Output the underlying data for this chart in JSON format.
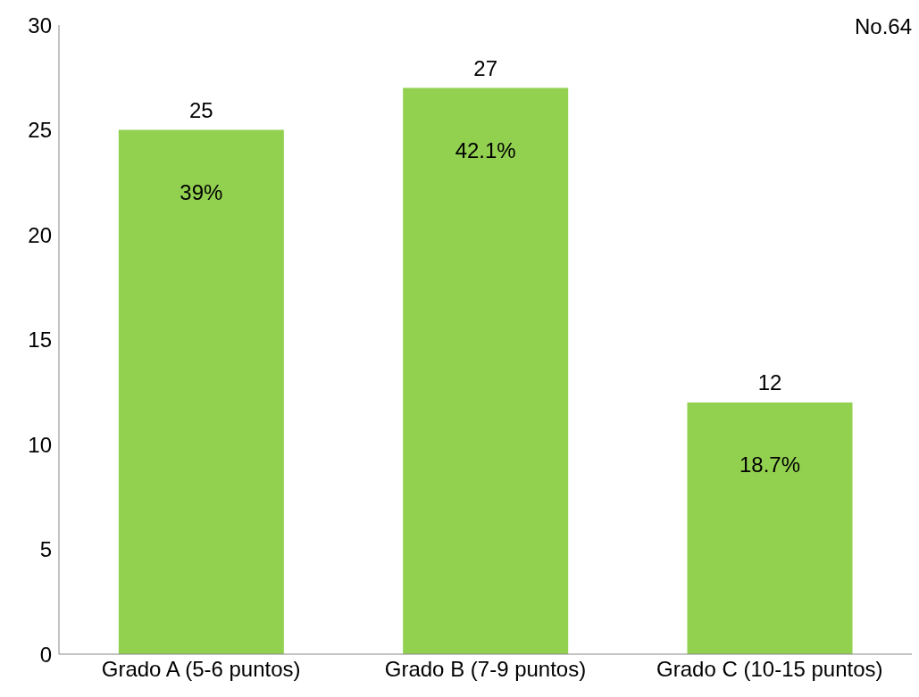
{
  "chart_data": {
    "type": "bar",
    "categories": [
      "Grado A (5-6 puntos)",
      "Grado B (7-9 puntos)",
      "Grado C (10-15 puntos)"
    ],
    "values": [
      25,
      27,
      12
    ],
    "color": "#92d050",
    "ylim": [
      0,
      30
    ],
    "yticks": [
      0,
      5,
      10,
      15,
      20,
      25,
      30
    ],
    "grid": false,
    "data_labels": true,
    "annotations": [
      "No.64",
      {
        "text": "39%",
        "x": "Grado A (5-6 puntos)",
        "y": 25
      },
      {
        "text": "42.1%",
        "x": "Grado B (7-9 puntos)",
        "y": 27
      },
      {
        "text": "18.7%",
        "x": "Grado C (10-15 puntos)",
        "y": 12
      }
    ]
  }
}
